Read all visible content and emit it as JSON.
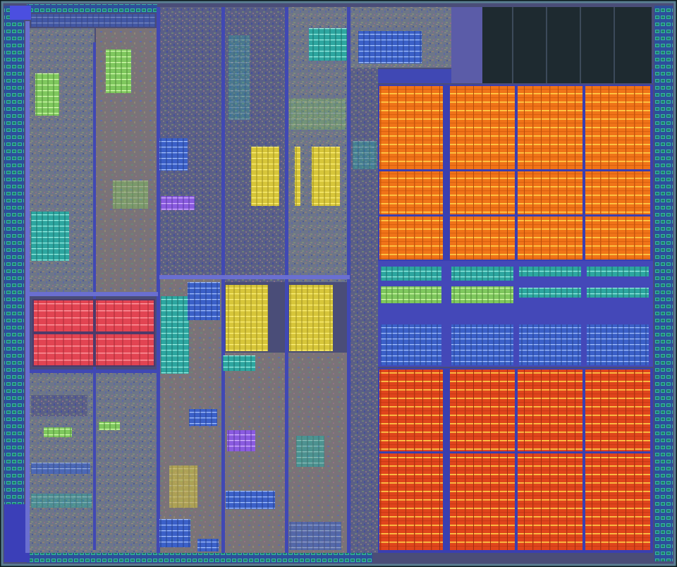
{
  "image": {
    "subject": "die-photo",
    "palette": {
      "background": "#0b1a1c",
      "die_border": "#5a7f92",
      "die_fill": "#4a4d78",
      "logic_a": "#6d7688",
      "logic_b": "#5a5f86",
      "logic_c": "#7a7378",
      "channel": "#4048b4",
      "channel_light": "#6a6fd0",
      "pad_ring": "#2d4f9a",
      "pad_green": "#1f7e69",
      "pad_cyan": "#37b7a4",
      "cache_orange": "#f07318",
      "cache_red": "#e0441c",
      "cache_line_yellow": "#ffd24a",
      "sram_red": "#e24452",
      "sram_yellow": "#d7c63a",
      "sram_green": "#7fc85e",
      "sram_teal": "#2da6a0",
      "sram_blue": "#3b60c8",
      "sram_violet": "#8a5be0",
      "dark_block": "#1e2a30"
    }
  }
}
